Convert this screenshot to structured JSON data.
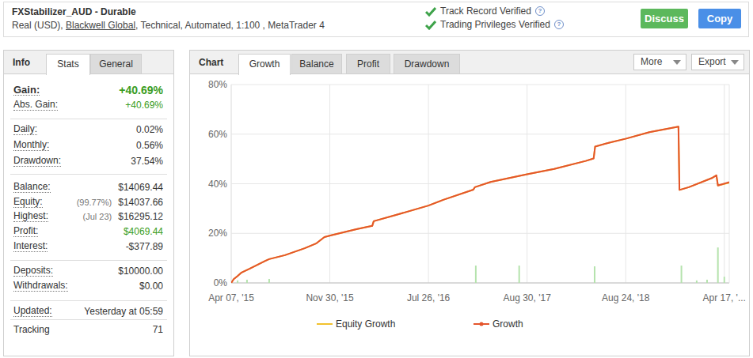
{
  "header": {
    "title": "FXStabilizer_AUD - Durable",
    "subtitle": [
      "Real (USD), ",
      "Blackwell Global",
      ", Technical, Automated, 1:100 , MetaTrader 4"
    ],
    "verified": [
      "Track Record Verified",
      "Trading Privileges Verified"
    ],
    "help_icon": "?",
    "buttons": [
      "Discuss",
      "Copy"
    ]
  },
  "info_panel": {
    "title": "Info",
    "tabs": [
      "Stats",
      "General"
    ],
    "groups": [
      [
        {
          "label": "Gain:",
          "value": "+40.69%",
          "color": "#3a9d23"
        },
        {
          "label": "Abs. Gain:",
          "value": "+40.69%",
          "color": "#3a9d23"
        }
      ],
      [
        {
          "label": "Daily:",
          "value": "0.02%"
        },
        {
          "label": "Monthly:",
          "value": "0.56%"
        },
        {
          "label": "Drawdown:",
          "value": "37.54%"
        }
      ],
      [
        {
          "label": "Balance:",
          "value": "$14069.44"
        },
        {
          "label": "Equity:",
          "note": "(99.77%)",
          "value": "$14037.66"
        },
        {
          "label": "Highest:",
          "note": "(Jul 23)",
          "value": "$16295.12"
        },
        {
          "label": "Profit:",
          "value": "$4069.44",
          "color": "#3a9d23"
        },
        {
          "label": "Interest:",
          "value": "-$377.89"
        }
      ],
      [
        {
          "label": "Deposits:",
          "value": "$10000.00"
        },
        {
          "label": "Withdrawals:",
          "value": "$0.00"
        }
      ],
      [
        {
          "label": "Updated:",
          "value": "Yesterday at 05:59"
        }
      ],
      [
        {
          "label": "Tracking",
          "value": "71"
        }
      ]
    ]
  },
  "chart_panel": {
    "title": "Chart",
    "tabs": [
      "Growth",
      "Balance",
      "Profit",
      "Drawdown"
    ],
    "menus": [
      "More",
      "Export"
    ]
  },
  "chart_data": {
    "type": "line",
    "series": [
      {
        "name": "Equity Growth",
        "color": "#f2c12e",
        "x": [
          0,
          0.5,
          1.3,
          2.1,
          3.7,
          5.3,
          6.9,
          7.7,
          10.9,
          14.9,
          17.3,
          18.9,
          20.1,
          25.4,
          28.6,
          28.9,
          33.4,
          40,
          43,
          49.1,
          49.4,
          52.6,
          60,
          65.5,
          71.9,
          73.5,
          73.8,
          76.7,
          80.1,
          84.8,
          90.7,
          90.9,
          92.8,
          97.6,
          98.4,
          98.7,
          101
        ],
        "values": [
          0,
          1.5,
          2.8,
          4.2,
          5.7,
          7.3,
          8.9,
          9.6,
          11.2,
          14,
          16,
          18.5,
          19.1,
          21.7,
          23,
          24.9,
          27.4,
          31.2,
          33.5,
          37.6,
          38.6,
          40.7,
          43.8,
          46,
          49.2,
          50.2,
          55,
          56.6,
          58.2,
          60.8,
          63,
          37.5,
          38.6,
          42.4,
          43.4,
          39.3,
          40.38
        ]
      },
      {
        "name": "Growth",
        "color": "#e4552c",
        "x": [
          0,
          0.5,
          1.3,
          2.1,
          3.7,
          5.3,
          6.9,
          7.7,
          10.9,
          14.9,
          17.3,
          18.9,
          20.1,
          25.4,
          28.6,
          28.9,
          33.4,
          40,
          43,
          49.1,
          49.4,
          52.6,
          60,
          65.5,
          71.9,
          73.5,
          73.8,
          76.7,
          80.1,
          84.8,
          90.7,
          90.9,
          92.8,
          97.6,
          98.4,
          98.7,
          101
        ],
        "values": [
          0,
          1.5,
          2.8,
          4.2,
          5.7,
          7.3,
          8.9,
          9.6,
          11.2,
          14,
          16,
          18.5,
          19.1,
          21.7,
          23,
          24.9,
          27.4,
          31.2,
          33.5,
          37.6,
          38.6,
          40.7,
          43.8,
          46,
          49.2,
          50.2,
          55,
          56.6,
          58.2,
          60.8,
          63,
          37.5,
          38.6,
          42.4,
          43.4,
          39.3,
          40.69
        ]
      },
      {
        "type": "bar",
        "color": "#b5e3ad",
        "x": [
          1.3,
          3.2,
          7.7,
          49.6,
          58.4,
          73.7,
          91.3,
          94.4,
          96.5,
          98.7,
          100
        ],
        "values": [
          1,
          1.3,
          1.6,
          7,
          7,
          6.7,
          7,
          1,
          1.3,
          14.3,
          2.5
        ]
      }
    ],
    "xlim": [
      0,
      101
    ],
    "xticks": [
      {
        "value": 0,
        "label": "Apr 07, '15"
      },
      {
        "value": 20,
        "label": "Nov 30, '15"
      },
      {
        "value": 40,
        "label": "Jul 26, '16"
      },
      {
        "value": 60,
        "label": "Aug 30, '17"
      },
      {
        "value": 80,
        "label": "Aug 24, '18"
      },
      {
        "value": 100,
        "label": "Apr 17, '..."
      }
    ],
    "ylim": [
      0,
      80
    ],
    "yticks": [
      {
        "value": 0,
        "label": "0%"
      },
      {
        "value": 20,
        "label": "20%"
      },
      {
        "value": 40,
        "label": "40%"
      },
      {
        "value": 60,
        "label": "60%"
      },
      {
        "value": 80,
        "label": "80%"
      }
    ],
    "grid": true,
    "legend": "bottom"
  }
}
